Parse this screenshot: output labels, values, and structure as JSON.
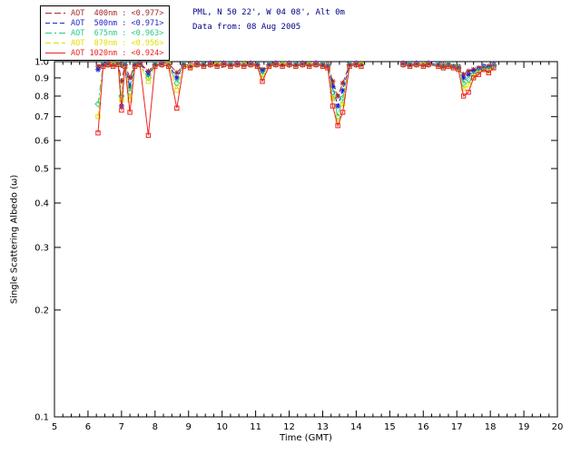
{
  "header": {
    "line1": "PML, N 50 22', W 04 08', Alt 0m",
    "line2": "Data from: 08 Aug 2005",
    "color": "#000088"
  },
  "axes": {
    "x_label": "Time (GMT)",
    "y_label": "Single Scattering Albedo (ω)"
  },
  "legend": {
    "entries": [
      {
        "label": "AOT  400nm : <0.977>",
        "wavelength": "400nm",
        "mean_value": "<0.977>",
        "color": "#a52a2a",
        "dash": "7,3"
      },
      {
        "label": "AOT  500nm : <0.971>",
        "wavelength": "500nm",
        "mean_value": "<0.971>",
        "color": "#2222cc",
        "dash": "5,3"
      },
      {
        "label": "AOT  675nm : <0.963>",
        "wavelength": "675nm",
        "mean_value": "<0.963>",
        "color": "#22cc88",
        "dash": "7,3,2,3"
      },
      {
        "label": "AOT  870nm : <0.956>",
        "wavelength": "870nm",
        "mean_value": "<0.956>",
        "color": "#e0e000",
        "dash": "6,3"
      },
      {
        "label": "AOT 1020nm : <0.924>",
        "wavelength": "1020nm",
        "mean_value": "<0.924>",
        "color": "#ee2222",
        "dash": ""
      }
    ]
  },
  "chart_data": {
    "type": "line",
    "title": "",
    "xlabel": "Time (GMT)",
    "ylabel": "Single Scattering Albedo (ω)",
    "xlim": [
      5,
      20
    ],
    "ylim": [
      0.1,
      1.0
    ],
    "yscale": "log",
    "grid": false,
    "legend_position": "top-left",
    "x_ticks": [
      5,
      6,
      7,
      8,
      9,
      10,
      11,
      12,
      13,
      14,
      15,
      16,
      17,
      18,
      19,
      20
    ],
    "y_ticks": [
      0.1,
      0.2,
      0.3,
      0.4,
      0.5,
      0.6,
      0.7,
      0.8,
      0.9,
      1.0
    ],
    "x": [
      6.3,
      6.45,
      6.6,
      6.75,
      6.9,
      7.0,
      7.1,
      7.25,
      7.4,
      7.55,
      7.8,
      8.0,
      8.2,
      8.4,
      8.65,
      8.85,
      9.05,
      9.25,
      9.45,
      9.65,
      9.85,
      10.05,
      10.25,
      10.45,
      10.65,
      10.85,
      11.05,
      11.2,
      11.4,
      11.6,
      11.8,
      12.0,
      12.2,
      12.4,
      12.6,
      12.8,
      13.0,
      13.15,
      13.3,
      13.45,
      13.6,
      13.8,
      14.0,
      14.15,
      15.4,
      15.6,
      15.8,
      16.0,
      16.15,
      16.45,
      16.6,
      16.75,
      16.9,
      17.05,
      17.2,
      17.35,
      17.5,
      17.65,
      17.8,
      17.95,
      18.1
    ],
    "series": [
      {
        "id": "400nm",
        "name": "AOT 400nm",
        "color": "#a52a2a",
        "marker": "asterisk",
        "dash": "7,3",
        "values": [
          0.97,
          0.98,
          0.99,
          0.99,
          0.99,
          0.88,
          0.98,
          0.9,
          0.98,
          0.99,
          0.94,
          0.98,
          0.99,
          0.99,
          0.93,
          0.98,
          0.98,
          0.99,
          0.98,
          0.99,
          0.98,
          0.99,
          0.98,
          0.99,
          0.98,
          0.99,
          0.98,
          0.95,
          0.98,
          0.99,
          0.98,
          0.99,
          0.98,
          0.99,
          0.98,
          0.99,
          0.98,
          0.98,
          0.88,
          0.8,
          0.87,
          0.98,
          0.99,
          0.98,
          0.99,
          0.98,
          0.99,
          0.98,
          0.99,
          0.98,
          0.98,
          0.98,
          0.97,
          0.97,
          0.92,
          0.94,
          0.95,
          0.96,
          0.97,
          0.97,
          0.98
        ]
      },
      {
        "id": "500nm",
        "name": "AOT 500nm",
        "color": "#2222cc",
        "marker": "asterisk",
        "dash": "5,3",
        "values": [
          0.95,
          0.98,
          0.99,
          0.98,
          0.99,
          0.75,
          0.98,
          0.85,
          0.98,
          0.99,
          0.92,
          0.98,
          0.99,
          0.98,
          0.9,
          0.98,
          0.97,
          0.99,
          0.98,
          0.99,
          0.98,
          0.99,
          0.98,
          0.99,
          0.98,
          0.99,
          0.98,
          0.94,
          0.98,
          0.99,
          0.98,
          0.99,
          0.98,
          0.99,
          0.98,
          0.99,
          0.98,
          0.97,
          0.85,
          0.75,
          0.83,
          0.98,
          0.99,
          0.98,
          0.99,
          0.98,
          0.99,
          0.98,
          0.99,
          0.98,
          0.97,
          0.98,
          0.97,
          0.96,
          0.9,
          0.92,
          0.94,
          0.95,
          0.97,
          0.96,
          0.98
        ]
      },
      {
        "id": "675nm",
        "name": "AOT 675nm",
        "color": "#22cc88",
        "marker": "diamond",
        "dash": "7,3,2,3",
        "values": [
          0.76,
          0.98,
          0.98,
          0.98,
          0.99,
          0.8,
          0.98,
          0.82,
          0.98,
          0.98,
          0.9,
          0.98,
          0.98,
          0.98,
          0.87,
          0.98,
          0.97,
          0.98,
          0.98,
          0.98,
          0.98,
          0.98,
          0.98,
          0.98,
          0.98,
          0.98,
          0.98,
          0.92,
          0.98,
          0.98,
          0.98,
          0.98,
          0.98,
          0.98,
          0.98,
          0.98,
          0.98,
          0.97,
          0.82,
          0.7,
          0.79,
          0.98,
          0.98,
          0.98,
          0.98,
          0.98,
          0.98,
          0.98,
          0.98,
          0.98,
          0.97,
          0.98,
          0.97,
          0.96,
          0.87,
          0.89,
          0.92,
          0.94,
          0.96,
          0.95,
          0.97
        ]
      },
      {
        "id": "870nm",
        "name": "AOT 870nm",
        "color": "#e0e000",
        "marker": "square",
        "dash": "6,3",
        "values": [
          0.7,
          0.97,
          0.98,
          0.98,
          0.98,
          0.78,
          0.97,
          0.78,
          0.97,
          0.98,
          0.88,
          0.97,
          0.98,
          0.98,
          0.83,
          0.97,
          0.97,
          0.98,
          0.97,
          0.98,
          0.98,
          0.98,
          0.97,
          0.98,
          0.98,
          0.98,
          0.97,
          0.9,
          0.97,
          0.98,
          0.98,
          0.98,
          0.97,
          0.98,
          0.98,
          0.98,
          0.97,
          0.96,
          0.79,
          0.68,
          0.76,
          0.97,
          0.98,
          0.98,
          0.98,
          0.97,
          0.98,
          0.98,
          0.98,
          0.97,
          0.96,
          0.97,
          0.96,
          0.95,
          0.84,
          0.86,
          0.91,
          0.93,
          0.95,
          0.94,
          0.96
        ]
      },
      {
        "id": "1020nm",
        "name": "AOT 1020nm",
        "color": "#ee2222",
        "marker": "square",
        "dash": "",
        "values": [
          0.63,
          0.97,
          0.98,
          0.97,
          0.98,
          0.73,
          0.97,
          0.72,
          0.97,
          0.98,
          0.62,
          0.97,
          0.98,
          0.97,
          0.74,
          0.97,
          0.96,
          0.98,
          0.97,
          0.98,
          0.97,
          0.98,
          0.97,
          0.98,
          0.97,
          0.98,
          0.97,
          0.88,
          0.97,
          0.98,
          0.97,
          0.98,
          0.97,
          0.98,
          0.97,
          0.98,
          0.97,
          0.96,
          0.75,
          0.66,
          0.72,
          0.97,
          0.98,
          0.97,
          0.98,
          0.97,
          0.98,
          0.97,
          0.98,
          0.97,
          0.96,
          0.97,
          0.96,
          0.95,
          0.8,
          0.82,
          0.9,
          0.92,
          0.95,
          0.93,
          0.96
        ]
      }
    ]
  }
}
